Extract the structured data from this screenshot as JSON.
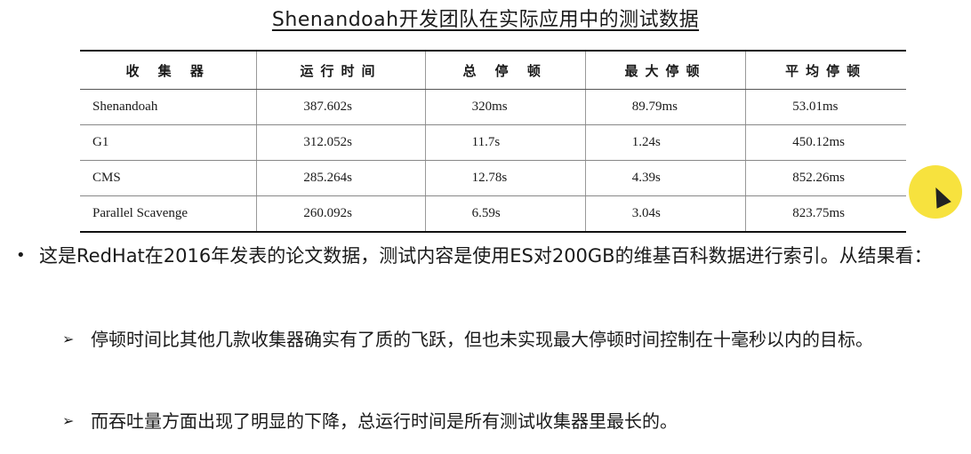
{
  "title": "Shenandoah开发团队在实际应用中的测试数据",
  "table": {
    "headers": [
      "收 集 器",
      "运行时间",
      "总 停 顿",
      "最大停顿",
      "平均停顿"
    ],
    "rows": [
      [
        "Shenandoah",
        "387.602s",
        "320ms",
        "89.79ms",
        "53.01ms"
      ],
      [
        "G1",
        "312.052s",
        "11.7s",
        "1.24s",
        "450.12ms"
      ],
      [
        "CMS",
        "285.264s",
        "12.78s",
        "4.39s",
        "852.26ms"
      ],
      [
        "Parallel Scavenge",
        "260.092s",
        "6.59s",
        "3.04s",
        "823.75ms"
      ]
    ]
  },
  "bullet": {
    "marker": "•",
    "text": "这是RedHat在2016年发表的论文数据，测试内容是使用ES对200GB的维基百科数据进行索引。从结果看："
  },
  "subpoints": [
    {
      "marker": "➢",
      "text": "停顿时间比其他几款收集器确实有了质的飞跃，但也未实现最大停顿时间控制在十毫秒以内的目标。"
    },
    {
      "marker": "➢",
      "text": "而吞吐量方面出现了明显的下降，总运行时间是所有测试收集器里最长的。"
    }
  ],
  "cursor": {
    "icon": "mouse-pointer-icon",
    "highlight_color": "#f6df2e"
  }
}
